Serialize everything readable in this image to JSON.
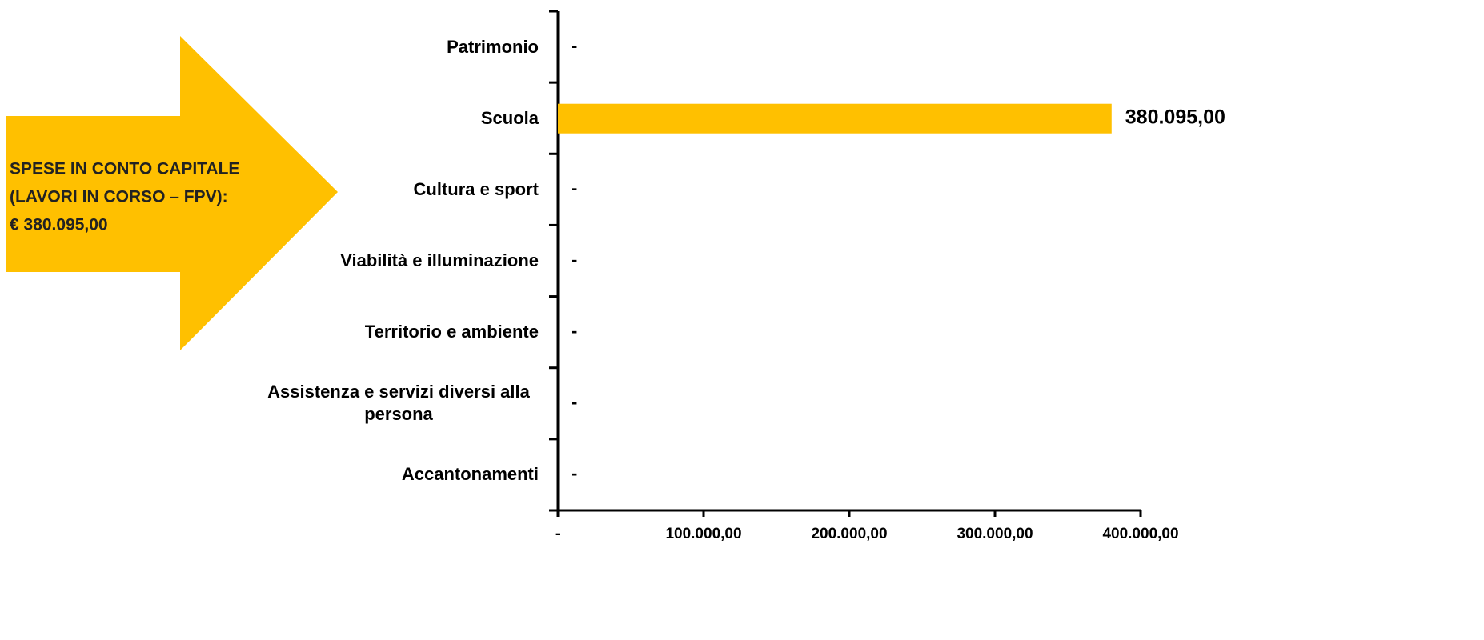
{
  "chart_data": {
    "type": "barh",
    "categories": [
      "Patrimonio",
      "Scuola",
      "Cultura e sport",
      "Viabilità e illuminazione",
      "Territorio e ambiente",
      "Assistenza e servizi diversi alla persona",
      "Accantonamenti"
    ],
    "values": [
      0,
      380095,
      0,
      0,
      0,
      0,
      0
    ],
    "value_labels": [
      "-",
      "380.095,00",
      "-",
      "-",
      "-",
      "-",
      "-"
    ],
    "color": "#ffc000",
    "xlim": [
      0,
      400000
    ],
    "xticks": [
      {
        "value": 0,
        "label": "-"
      },
      {
        "value": 100000,
        "label": "100.000,00"
      },
      {
        "value": 200000,
        "label": "200.000,00"
      },
      {
        "value": 300000,
        "label": "300.000,00"
      },
      {
        "value": 400000,
        "label": "400.000,00"
      }
    ],
    "annotation": {
      "lines": [
        "SPESE IN CONTO CAPITALE",
        "(LAVORI IN CORSO – FPV):",
        "€ 380.095,00"
      ],
      "color": "#ffc000"
    }
  }
}
